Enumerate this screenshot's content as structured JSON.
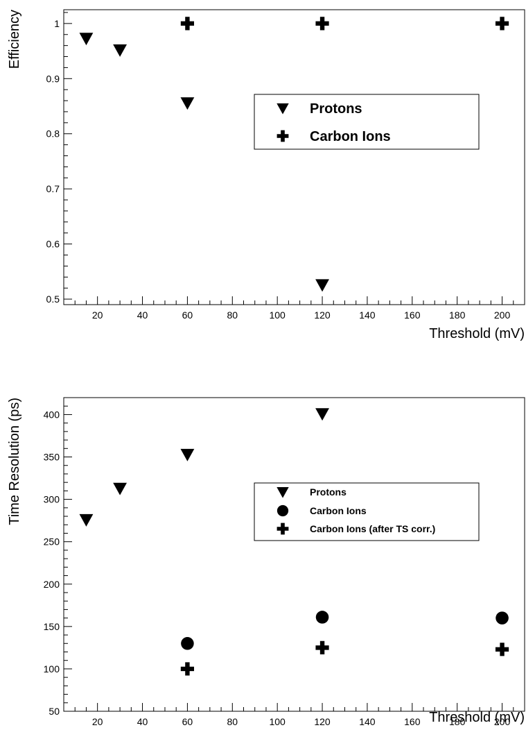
{
  "chart_data": [
    {
      "type": "scatter",
      "title": "",
      "xlabel": "Threshold (mV)",
      "ylabel": "Efficiency",
      "xlim": [
        5,
        210
      ],
      "ylim": [
        0.49,
        1.025
      ],
      "x_ticks": [
        "20",
        "40",
        "60",
        "80",
        "100",
        "120",
        "140",
        "160",
        "180",
        "200"
      ],
      "y_ticks": [
        "0.5",
        "0.6",
        "0.7",
        "0.8",
        "0.9",
        "1"
      ],
      "legend_position": "center-right",
      "grid": false,
      "series": [
        {
          "name": "Protons",
          "marker": "triangle-down",
          "x": [
            15,
            30,
            60,
            120
          ],
          "y": [
            0.973,
            0.952,
            0.856,
            0.526
          ]
        },
        {
          "name": "Carbon Ions",
          "marker": "plus",
          "x": [
            60,
            120,
            200
          ],
          "y": [
            1.0,
            1.0,
            1.0
          ]
        }
      ]
    },
    {
      "type": "scatter",
      "title": "",
      "xlabel": "Threshold (mV)",
      "ylabel": "Time Resolution (ps)",
      "xlim": [
        5,
        210
      ],
      "ylim": [
        50,
        420
      ],
      "x_ticks": [
        "20",
        "40",
        "60",
        "80",
        "100",
        "120",
        "140",
        "160",
        "180",
        "200"
      ],
      "y_ticks": [
        "50",
        "100",
        "150",
        "200",
        "250",
        "300",
        "350",
        "400"
      ],
      "legend_position": "center-right",
      "grid": false,
      "series": [
        {
          "name": "Protons",
          "marker": "triangle-down",
          "x": [
            15,
            30,
            60,
            120
          ],
          "y": [
            276,
            313,
            353,
            401
          ]
        },
        {
          "name": "Carbon Ions",
          "marker": "circle",
          "x": [
            60,
            120,
            200
          ],
          "y": [
            130,
            161,
            160
          ]
        },
        {
          "name": "Carbon Ions (after TS corr.)",
          "marker": "plus",
          "x": [
            60,
            120,
            200
          ],
          "y": [
            100,
            125,
            123
          ]
        }
      ]
    }
  ]
}
